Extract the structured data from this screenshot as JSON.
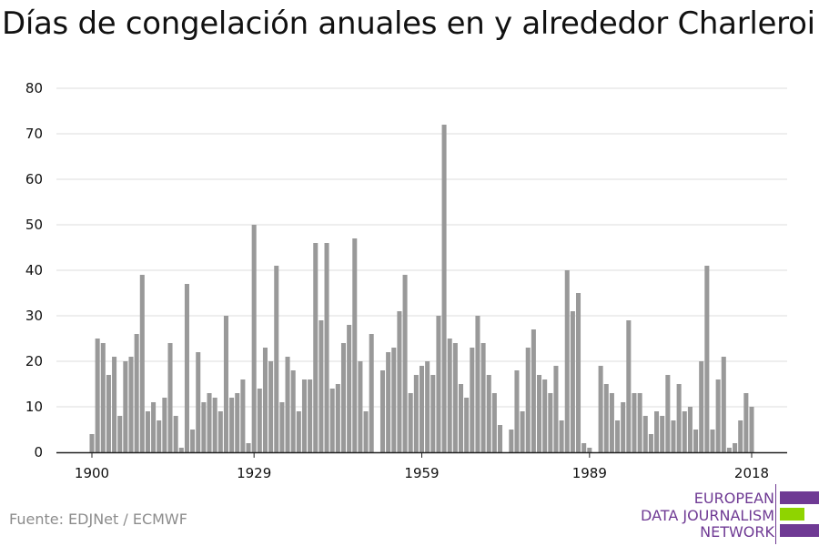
{
  "title": "Días de congelación anuales en y alrededor Charleroi",
  "source": "Fuente: EDJNet / ECMWF",
  "logo": {
    "lines": [
      "EUROPEAN",
      "DATA JOURNALISM",
      "NETWORK"
    ],
    "colors": {
      "purple": "#6f3a94",
      "green": "#8fd400"
    }
  },
  "chart_data": {
    "type": "bar",
    "title": "Días de congelación anuales en y alrededor Charleroi",
    "xlabel": "",
    "ylabel": "",
    "ylim": [
      0,
      80
    ],
    "yticks": [
      0,
      10,
      20,
      30,
      40,
      50,
      60,
      70,
      80
    ],
    "xticks": [
      1900,
      1929,
      1959,
      1989,
      2018
    ],
    "grid": true,
    "bar_color": "#999999",
    "x": [
      1900,
      1901,
      1902,
      1903,
      1904,
      1905,
      1906,
      1907,
      1908,
      1909,
      1910,
      1911,
      1912,
      1913,
      1914,
      1915,
      1916,
      1917,
      1918,
      1919,
      1920,
      1921,
      1922,
      1923,
      1924,
      1925,
      1926,
      1927,
      1928,
      1929,
      1930,
      1931,
      1932,
      1933,
      1934,
      1935,
      1936,
      1937,
      1938,
      1939,
      1940,
      1941,
      1942,
      1943,
      1944,
      1945,
      1946,
      1947,
      1948,
      1949,
      1950,
      1951,
      1952,
      1953,
      1954,
      1955,
      1956,
      1957,
      1958,
      1959,
      1960,
      1961,
      1962,
      1963,
      1964,
      1965,
      1966,
      1967,
      1968,
      1969,
      1970,
      1971,
      1972,
      1973,
      1974,
      1975,
      1976,
      1977,
      1978,
      1979,
      1980,
      1981,
      1982,
      1983,
      1984,
      1985,
      1986,
      1987,
      1988,
      1989,
      1990,
      1991,
      1992,
      1993,
      1994,
      1995,
      1996,
      1997,
      1998,
      1999,
      2000,
      2001,
      2002,
      2003,
      2004,
      2005,
      2006,
      2007,
      2008,
      2009,
      2010,
      2011,
      2012,
      2013,
      2014,
      2015,
      2016,
      2017,
      2018
    ],
    "values": [
      4,
      25,
      24,
      17,
      21,
      8,
      20,
      21,
      26,
      39,
      9,
      11,
      7,
      12,
      24,
      8,
      1,
      37,
      5,
      22,
      11,
      13,
      12,
      9,
      30,
      12,
      13,
      16,
      2,
      50,
      14,
      23,
      20,
      41,
      11,
      21,
      18,
      9,
      16,
      16,
      46,
      29,
      46,
      14,
      15,
      24,
      28,
      47,
      20,
      9,
      26,
      0,
      18,
      22,
      23,
      31,
      39,
      13,
      17,
      19,
      20,
      17,
      30,
      72,
      25,
      24,
      15,
      12,
      23,
      30,
      24,
      17,
      13,
      6,
      0,
      5,
      18,
      9,
      23,
      27,
      17,
      16,
      13,
      19,
      7,
      40,
      31,
      35,
      2,
      1,
      0,
      19,
      15,
      13,
      7,
      11,
      29,
      13,
      13,
      8,
      4,
      9,
      8,
      17,
      7,
      15,
      9,
      10,
      5,
      20,
      41,
      5,
      16,
      21,
      1,
      2,
      7,
      13,
      10
    ]
  }
}
